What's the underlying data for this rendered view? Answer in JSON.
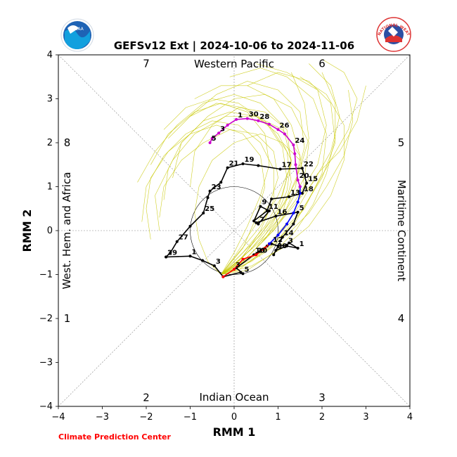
{
  "logos": {
    "left_text": "NOAA",
    "right_text": "NATIONAL WEATHER SERVICE"
  },
  "footer": "Climate Prediction Center",
  "colors": {
    "ensemble": "#c8c800",
    "observed": "#000000",
    "fcst_red": "#ff0000",
    "fcst_blue": "#0000ff",
    "fcst_magenta": "#cc00cc",
    "footer": "#ff0000"
  },
  "chart_data": {
    "type": "line",
    "title": "GEFSv12 Ext | 2024-10-06 to 2024-11-06",
    "xlabel": "RMM 1",
    "ylabel": "RMM 2",
    "xlim": [
      -4,
      4
    ],
    "ylim": [
      -4,
      4
    ],
    "xticks": [
      -4,
      -3,
      -2,
      -1,
      0,
      1,
      2,
      3,
      4
    ],
    "yticks": [
      -4,
      -3,
      -2,
      -1,
      0,
      1,
      2,
      3,
      4
    ],
    "regions": {
      "top": "Western Pacific",
      "bottom": "Indian Ocean",
      "left": "West. Hem. and Africa",
      "right": "Maritime Continent"
    },
    "phases": [
      {
        "label": "7",
        "x": -2,
        "y": 3.8
      },
      {
        "label": "6",
        "x": 2,
        "y": 3.8
      },
      {
        "label": "8",
        "x": -3.8,
        "y": 2
      },
      {
        "label": "5",
        "x": 3.8,
        "y": 2
      },
      {
        "label": "1",
        "x": -3.8,
        "y": -2
      },
      {
        "label": "4",
        "x": 3.8,
        "y": -2
      },
      {
        "label": "2",
        "x": -2,
        "y": -3.8
      },
      {
        "label": "3",
        "x": 2,
        "y": -3.8
      }
    ],
    "observed": [
      {
        "x": -1.55,
        "y": -0.6,
        "label": "29"
      },
      {
        "x": -1.0,
        "y": -0.58,
        "label": "1"
      },
      {
        "x": -0.72,
        "y": -0.68
      },
      {
        "x": -0.45,
        "y": -0.8,
        "label": "3"
      },
      {
        "x": -0.25,
        "y": -1.05
      },
      {
        "x": 0.15,
        "y": -0.95
      },
      {
        "x": 0.2,
        "y": -0.98,
        "label": "5"
      },
      {
        "x": 0.05,
        "y": -0.85
      },
      {
        "x": 0.45,
        "y": -0.55,
        "label": "10"
      },
      {
        "x": 0.75,
        "y": -0.35
      },
      {
        "x": 0.85,
        "y": -0.3,
        "label": "12"
      },
      {
        "x": 1.0,
        "y": -0.35
      },
      {
        "x": 1.2,
        "y": -0.33,
        "label": "3"
      },
      {
        "x": 1.25,
        "y": -0.28
      },
      {
        "x": 1.45,
        "y": -0.4,
        "label": "1"
      },
      {
        "x": 1.2,
        "y": -0.35
      },
      {
        "x": 0.95,
        "y": -0.45,
        "label": "30"
      },
      {
        "x": 0.9,
        "y": -0.55
      },
      {
        "x": 1.1,
        "y": -0.15,
        "label": "14"
      },
      {
        "x": 1.35,
        "y": 0.15
      },
      {
        "x": 1.45,
        "y": 0.42,
        "label": "5"
      },
      {
        "x": 0.95,
        "y": 0.33,
        "label": "16"
      },
      {
        "x": 0.5,
        "y": 0.18
      },
      {
        "x": 0.55,
        "y": 0.15,
        "label": "7"
      },
      {
        "x": 0.8,
        "y": 0.45
      },
      {
        "x": 0.6,
        "y": 0.55,
        "label": "9"
      },
      {
        "x": 0.45,
        "y": 0.22
      },
      {
        "x": 0.75,
        "y": 0.45,
        "label": "11"
      },
      {
        "x": 0.85,
        "y": 0.72
      },
      {
        "x": 1.25,
        "y": 0.77,
        "label": "13"
      },
      {
        "x": 1.55,
        "y": 0.85,
        "label": "18"
      },
      {
        "x": 1.65,
        "y": 1.08,
        "label": "15"
      },
      {
        "x": 1.55,
        "y": 1.42,
        "label": "22"
      },
      {
        "x": 1.05,
        "y": 1.4,
        "label": "17"
      },
      {
        "x": 0.55,
        "y": 1.48
      },
      {
        "x": 0.2,
        "y": 1.52,
        "label": "19"
      },
      {
        "x": -0.15,
        "y": 1.43,
        "label": "21"
      },
      {
        "x": -0.3,
        "y": 1.1
      },
      {
        "x": -0.55,
        "y": 0.9,
        "label": "23"
      },
      {
        "x": -0.6,
        "y": 0.75
      },
      {
        "x": -0.7,
        "y": 0.4,
        "label": "25"
      },
      {
        "x": -1.0,
        "y": 0.1
      },
      {
        "x": -1.3,
        "y": -0.25,
        "label": "27"
      },
      {
        "x": -1.45,
        "y": -0.5
      },
      {
        "x": -1.55,
        "y": -0.6
      }
    ],
    "forecast_red": [
      {
        "x": -0.25,
        "y": -1.05
      },
      {
        "x": 0.0,
        "y": -0.88,
        "label": "3"
      },
      {
        "x": 0.2,
        "y": -0.65
      },
      {
        "x": 0.5,
        "y": -0.55,
        "label": "10"
      },
      {
        "x": 0.7,
        "y": -0.4
      },
      {
        "x": 0.8,
        "y": -0.3
      }
    ],
    "forecast_blue": [
      {
        "x": 0.8,
        "y": -0.3
      },
      {
        "x": 1.0,
        "y": -0.1
      },
      {
        "x": 1.2,
        "y": 0.15
      },
      {
        "x": 1.35,
        "y": 0.4
      },
      {
        "x": 1.45,
        "y": 0.65
      },
      {
        "x": 1.5,
        "y": 0.85
      },
      {
        "x": 1.5,
        "y": 1.0
      }
    ],
    "forecast_magenta": [
      {
        "x": 1.5,
        "y": 1.0
      },
      {
        "x": 1.45,
        "y": 1.15,
        "label": "20"
      },
      {
        "x": 1.4,
        "y": 1.5
      },
      {
        "x": 1.38,
        "y": 1.75
      },
      {
        "x": 1.35,
        "y": 1.95,
        "label": "24"
      },
      {
        "x": 1.15,
        "y": 2.2
      },
      {
        "x": 1.0,
        "y": 2.3,
        "label": "26"
      },
      {
        "x": 0.8,
        "y": 2.42
      },
      {
        "x": 0.55,
        "y": 2.5,
        "label": "28"
      },
      {
        "x": 0.3,
        "y": 2.55,
        "label": "30"
      },
      {
        "x": 0.05,
        "y": 2.53,
        "label": "1"
      },
      {
        "x": -0.15,
        "y": 2.4
      },
      {
        "x": -0.35,
        "y": 2.22,
        "label": "3"
      },
      {
        "x": -0.5,
        "y": 2.1
      },
      {
        "x": -0.55,
        "y": 2.0,
        "label": "5"
      }
    ],
    "ensemble_members": [
      [
        [
          -0.3,
          -1.0
        ],
        [
          0.2,
          -0.6
        ],
        [
          0.7,
          -0.1
        ],
        [
          1.2,
          0.5
        ],
        [
          1.6,
          1.2
        ],
        [
          1.7,
          2.0
        ],
        [
          1.3,
          2.8
        ],
        [
          0.7,
          3.1
        ],
        [
          0.0,
          3.0
        ],
        [
          -0.6,
          2.6
        ],
        [
          -1.2,
          2.0
        ],
        [
          -1.4,
          1.2
        ]
      ],
      [
        [
          -0.3,
          -1.0
        ],
        [
          0.1,
          -0.5
        ],
        [
          0.6,
          0.1
        ],
        [
          1.0,
          0.8
        ],
        [
          1.3,
          1.5
        ],
        [
          1.2,
          2.3
        ],
        [
          0.7,
          2.7
        ],
        [
          0.1,
          2.8
        ],
        [
          -0.5,
          2.4
        ],
        [
          -0.9,
          1.8
        ],
        [
          -1.0,
          1.0
        ]
      ],
      [
        [
          -0.3,
          -1.0
        ],
        [
          0.3,
          -0.7
        ],
        [
          0.9,
          -0.2
        ],
        [
          1.5,
          0.4
        ],
        [
          2.0,
          1.2
        ],
        [
          2.3,
          2.0
        ],
        [
          2.2,
          2.9
        ],
        [
          1.7,
          3.4
        ],
        [
          1.0,
          3.6
        ],
        [
          0.3,
          3.3
        ]
      ],
      [
        [
          -0.3,
          -1.0
        ],
        [
          0.2,
          -0.8
        ],
        [
          0.8,
          -0.4
        ],
        [
          1.4,
          0.2
        ],
        [
          1.8,
          0.9
        ],
        [
          2.2,
          1.6
        ],
        [
          2.6,
          2.3
        ],
        [
          2.8,
          3.0
        ],
        [
          2.5,
          3.6
        ],
        [
          2.0,
          3.9
        ]
      ],
      [
        [
          -0.3,
          -1.0
        ],
        [
          0.0,
          -0.6
        ],
        [
          0.4,
          0.0
        ],
        [
          0.8,
          0.6
        ],
        [
          1.0,
          1.2
        ],
        [
          0.9,
          1.8
        ],
        [
          0.5,
          2.2
        ],
        [
          -0.1,
          2.3
        ],
        [
          -0.7,
          2.0
        ],
        [
          -1.2,
          1.6
        ],
        [
          -1.6,
          1.0
        ],
        [
          -1.7,
          0.3
        ]
      ],
      [
        [
          -0.3,
          -1.0
        ],
        [
          0.3,
          -0.5
        ],
        [
          0.9,
          0.0
        ],
        [
          1.4,
          0.7
        ],
        [
          1.9,
          1.5
        ],
        [
          2.1,
          2.4
        ],
        [
          1.9,
          3.2
        ],
        [
          1.2,
          3.6
        ],
        [
          0.5,
          3.8
        ]
      ],
      [
        [
          -0.3,
          -1.0
        ],
        [
          0.2,
          -0.7
        ],
        [
          0.8,
          -0.3
        ],
        [
          1.3,
          0.3
        ],
        [
          1.6,
          1.0
        ],
        [
          1.5,
          1.7
        ],
        [
          1.1,
          2.3
        ],
        [
          0.5,
          2.6
        ],
        [
          -0.2,
          2.6
        ],
        [
          -0.9,
          2.2
        ],
        [
          -1.4,
          1.6
        ],
        [
          -1.8,
          0.8
        ],
        [
          -1.7,
          0.0
        ]
      ],
      [
        [
          -0.3,
          -1.0
        ],
        [
          0.1,
          -0.9
        ],
        [
          0.6,
          -0.5
        ],
        [
          1.1,
          0.0
        ],
        [
          1.5,
          0.6
        ],
        [
          1.9,
          1.3
        ],
        [
          2.4,
          1.8
        ],
        [
          2.8,
          2.5
        ],
        [
          3.0,
          3.3
        ]
      ],
      [
        [
          -0.3,
          -1.0
        ],
        [
          0.2,
          -0.6
        ],
        [
          0.6,
          0.0
        ],
        [
          0.9,
          0.7
        ],
        [
          0.9,
          1.4
        ],
        [
          0.6,
          2.0
        ],
        [
          0.1,
          2.4
        ],
        [
          -0.5,
          2.5
        ],
        [
          -1.1,
          2.2
        ],
        [
          -1.6,
          1.7
        ],
        [
          -2.0,
          1.0
        ],
        [
          -2.1,
          0.2
        ]
      ],
      [
        [
          -0.3,
          -1.0
        ],
        [
          0.4,
          -0.7
        ],
        [
          1.0,
          -0.2
        ],
        [
          1.6,
          0.5
        ],
        [
          2.0,
          1.3
        ],
        [
          2.1,
          2.2
        ],
        [
          1.8,
          3.0
        ],
        [
          1.2,
          3.5
        ],
        [
          0.6,
          3.7
        ],
        [
          -0.1,
          3.5
        ]
      ],
      [
        [
          -0.3,
          -1.0
        ],
        [
          0.1,
          -0.7
        ],
        [
          0.5,
          -0.2
        ],
        [
          1.0,
          0.4
        ],
        [
          1.4,
          1.1
        ],
        [
          1.6,
          1.9
        ],
        [
          1.5,
          2.7
        ],
        [
          1.0,
          3.2
        ],
        [
          0.3,
          3.4
        ],
        [
          -0.4,
          3.1
        ],
        [
          -1.0,
          2.6
        ]
      ],
      [
        [
          -0.3,
          -1.0
        ],
        [
          0.2,
          -0.8
        ],
        [
          0.7,
          -0.5
        ],
        [
          1.2,
          -0.1
        ],
        [
          1.7,
          0.4
        ],
        [
          2.1,
          1.0
        ],
        [
          2.5,
          1.7
        ],
        [
          2.7,
          2.5
        ],
        [
          2.6,
          3.2
        ]
      ],
      [
        [
          -0.3,
          -1.0
        ],
        [
          0.0,
          -0.5
        ],
        [
          0.3,
          0.1
        ],
        [
          0.6,
          0.8
        ],
        [
          0.8,
          1.5
        ],
        [
          0.7,
          2.2
        ],
        [
          0.3,
          2.7
        ],
        [
          -0.3,
          2.9
        ],
        [
          -0.9,
          2.7
        ],
        [
          -1.5,
          2.2
        ],
        [
          -1.9,
          1.5
        ]
      ],
      [
        [
          -0.3,
          -1.0
        ],
        [
          0.3,
          -0.6
        ],
        [
          0.8,
          -0.1
        ],
        [
          1.3,
          0.5
        ],
        [
          1.8,
          1.1
        ],
        [
          2.2,
          1.8
        ],
        [
          2.4,
          2.6
        ],
        [
          2.2,
          3.3
        ],
        [
          1.7,
          3.8
        ]
      ],
      [
        [
          -0.3,
          -1.0
        ],
        [
          0.2,
          -0.5
        ],
        [
          0.7,
          0.1
        ],
        [
          1.1,
          0.8
        ],
        [
          1.3,
          1.6
        ],
        [
          1.1,
          2.4
        ],
        [
          0.6,
          2.9
        ],
        [
          0.0,
          3.1
        ],
        [
          -0.7,
          2.9
        ],
        [
          -1.3,
          2.4
        ],
        [
          -1.8,
          1.8
        ],
        [
          -2.2,
          1.1
        ]
      ],
      [
        [
          -0.3,
          -1.0
        ],
        [
          -0.6,
          -0.7
        ],
        [
          -0.8,
          -0.2
        ],
        [
          -0.9,
          0.4
        ],
        [
          -0.8,
          1.0
        ],
        [
          -0.5,
          1.6
        ],
        [
          0.0,
          2.0
        ],
        [
          0.6,
          2.2
        ],
        [
          1.1,
          2.0
        ],
        [
          1.5,
          1.6
        ]
      ],
      [
        [
          -0.3,
          -1.0
        ],
        [
          0.1,
          -0.8
        ],
        [
          0.5,
          -0.4
        ],
        [
          0.9,
          0.2
        ],
        [
          1.2,
          0.9
        ],
        [
          1.3,
          1.6
        ],
        [
          1.0,
          2.2
        ],
        [
          0.5,
          2.6
        ],
        [
          -0.1,
          2.7
        ],
        [
          -0.7,
          2.5
        ],
        [
          -1.2,
          2.0
        ],
        [
          -1.5,
          1.4
        ],
        [
          -1.6,
          0.7
        ]
      ],
      [
        [
          -0.3,
          -1.0
        ],
        [
          0.4,
          -0.8
        ],
        [
          1.1,
          -0.4
        ],
        [
          1.7,
          0.1
        ],
        [
          2.2,
          0.8
        ],
        [
          2.5,
          1.6
        ],
        [
          2.5,
          2.4
        ],
        [
          2.1,
          3.1
        ],
        [
          1.5,
          3.5
        ]
      ],
      [
        [
          -0.3,
          -1.0
        ],
        [
          0.2,
          -0.7
        ],
        [
          0.7,
          -0.2
        ],
        [
          1.1,
          0.4
        ],
        [
          1.3,
          1.1
        ],
        [
          1.2,
          1.8
        ],
        [
          0.8,
          2.4
        ],
        [
          0.2,
          2.8
        ],
        [
          -0.4,
          2.9
        ],
        [
          -1.0,
          2.6
        ],
        [
          -1.5,
          2.1
        ]
      ],
      [
        [
          -0.3,
          -1.0
        ],
        [
          0.0,
          -0.8
        ],
        [
          0.4,
          -0.4
        ],
        [
          0.8,
          0.1
        ],
        [
          1.2,
          0.7
        ],
        [
          1.5,
          1.4
        ],
        [
          1.7,
          2.1
        ],
        [
          1.6,
          2.9
        ],
        [
          1.3,
          3.6
        ]
      ],
      [
        [
          -0.3,
          -1.0
        ],
        [
          0.2,
          -0.4
        ],
        [
          0.5,
          0.3
        ],
        [
          0.7,
          1.0
        ],
        [
          0.6,
          1.7
        ],
        [
          0.2,
          2.2
        ],
        [
          -0.4,
          2.4
        ],
        [
          -1.0,
          2.2
        ],
        [
          -1.5,
          1.8
        ],
        [
          -1.9,
          1.2
        ],
        [
          -2.0,
          0.5
        ],
        [
          -1.9,
          -0.2
        ]
      ],
      [
        [
          -0.3,
          -1.0
        ],
        [
          0.3,
          -0.9
        ],
        [
          0.9,
          -0.5
        ],
        [
          1.4,
          0.0
        ],
        [
          1.8,
          0.6
        ],
        [
          2.1,
          1.3
        ],
        [
          2.3,
          2.1
        ],
        [
          2.3,
          2.9
        ],
        [
          2.0,
          3.6
        ]
      ],
      [
        [
          -0.3,
          -1.0
        ],
        [
          0.1,
          -0.6
        ],
        [
          0.6,
          -0.1
        ],
        [
          1.0,
          0.5
        ],
        [
          1.2,
          1.2
        ],
        [
          1.1,
          1.9
        ],
        [
          0.7,
          2.5
        ],
        [
          0.1,
          2.9
        ],
        [
          -0.5,
          3.0
        ],
        [
          -1.1,
          2.8
        ],
        [
          -1.6,
          2.3
        ]
      ],
      [
        [
          -0.3,
          -1.0
        ],
        [
          0.2,
          -0.7
        ],
        [
          0.6,
          -0.3
        ],
        [
          1.1,
          0.3
        ],
        [
          1.4,
          1.0
        ],
        [
          1.5,
          1.7
        ],
        [
          1.3,
          2.4
        ],
        [
          0.9,
          3.0
        ],
        [
          0.3,
          3.3
        ],
        [
          -0.3,
          3.3
        ],
        [
          -0.9,
          3.0
        ]
      ]
    ]
  }
}
